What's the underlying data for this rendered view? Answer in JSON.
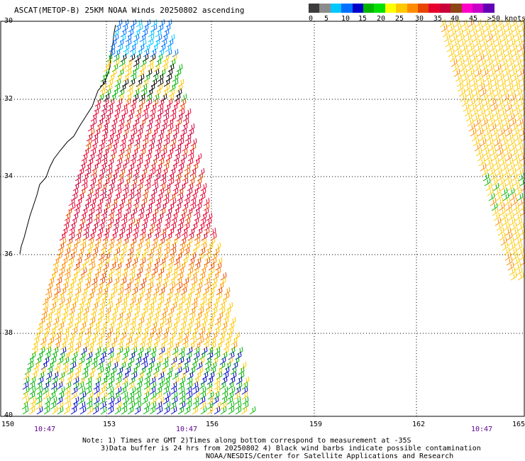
{
  "title": "ASCAT(METOP-B) 25KM NOAA Winds 20250802 ascending",
  "colorbar": {
    "colors": [
      "#3c3c3c",
      "#8c8c8c",
      "#00c8ff",
      "#0070ff",
      "#0000c8",
      "#00b400",
      "#00e100",
      "#ffff00",
      "#ffc800",
      "#ff8c00",
      "#e64600",
      "#e6002d",
      "#c8003c",
      "#8c4614",
      "#ff00c8",
      "#c800c8",
      "#6400b4"
    ],
    "ticks": [
      "0",
      "5",
      "10",
      "15",
      "20",
      "25",
      "30",
      "35",
      "40",
      "45",
      ">50 knots"
    ]
  },
  "axes": {
    "latitudes": [
      "30",
      "32",
      "34",
      "36",
      "38",
      "40"
    ],
    "longitudes": [
      "150",
      "153",
      "156",
      "159",
      "162",
      "165"
    ]
  },
  "times": [
    "10:47",
    "10:47",
    "10:47"
  ],
  "notes": {
    "line1": "Note: 1) Times are GMT 2)Times along bottom correspond to measurement at -35S",
    "line2": "3)Data buffer is 24 hrs from 20250802 4) Black wind barbs indicate possible contamination",
    "line3": "NOAA/NESDIS/Center for Satellite Applications and Research"
  }
}
